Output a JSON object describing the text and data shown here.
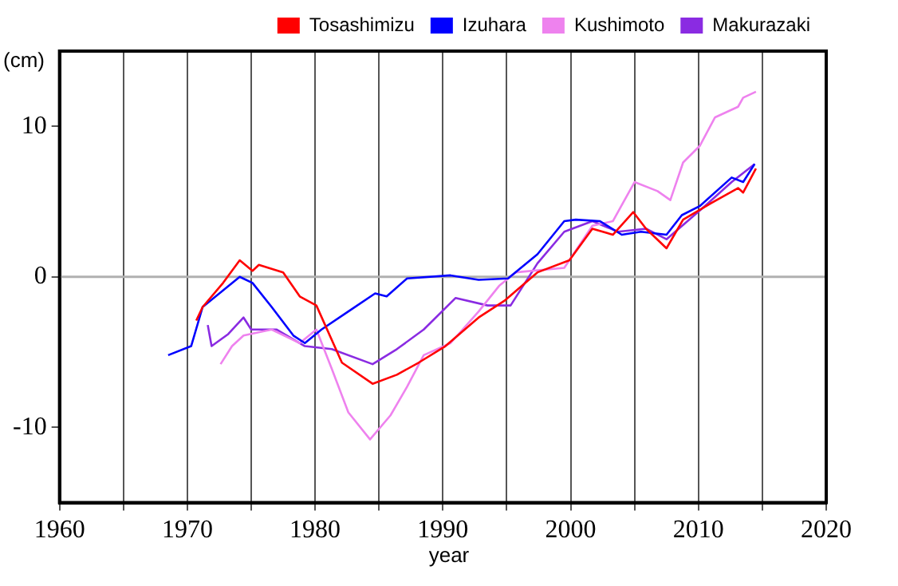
{
  "chart_data": {
    "type": "line",
    "xlabel": "year",
    "ylabel": "(cm)",
    "legend": "top right",
    "grid": "x",
    "marker": "none",
    "line_style": "solid",
    "xlim": [
      1960,
      2020
    ],
    "xticks": [
      1960,
      {
        "value": 1965,
        "label": null
      },
      1970,
      {
        "value": 1975,
        "label": null
      },
      1980,
      {
        "value": 1985,
        "label": null
      },
      1990,
      {
        "value": 1995,
        "label": null
      },
      2000,
      {
        "value": 2005,
        "label": null
      },
      2010,
      {
        "value": 2015,
        "label": null
      },
      2020
    ],
    "ylim": [
      -15,
      15
    ],
    "yticks": [
      -10,
      0,
      10
    ],
    "ref_lines": [
      {
        "axis": "y",
        "value": 0,
        "color": "#b0b0b0"
      }
    ],
    "series": [
      {
        "name": "Tosashimizu",
        "color": "#ff0000",
        "x": [
          1970.7,
          1971.2,
          1972.8,
          1974.1,
          1975.1,
          1975.6,
          1977.5,
          1978.8,
          1980.1,
          1982.1,
          1984.5,
          1986.4,
          1988.1,
          1990.2,
          1992.8,
          1994.8,
          1997.4,
          1999.9,
          2001.7,
          2003.3,
          2004.9,
          2005.9,
          2007.5,
          2008.8,
          2011,
          2013.1,
          2013.5,
          2014.5
        ],
        "values": [
          -2.9,
          -2.0,
          -0.4,
          1.1,
          0.4,
          0.8,
          0.3,
          -1.3,
          -1.9,
          -5.7,
          -7.1,
          -6.5,
          -5.7,
          -4.6,
          -2.7,
          -1.6,
          0.3,
          1.1,
          3.2,
          2.8,
          4.3,
          3.2,
          1.9,
          3.8,
          4.9,
          5.9,
          5.6,
          7.2
        ]
      },
      {
        "name": "Izuhara",
        "color": "#0000ff",
        "x": [
          1968.5,
          1970.3,
          1971.2,
          1974.1,
          1975.1,
          1976.6,
          1978.3,
          1979.2,
          1980.5,
          1982.6,
          1984.7,
          1985.6,
          1987.2,
          1990.6,
          1992.8,
          1995.1,
          1997.4,
          1999.5,
          2000.4,
          2002.3,
          2004,
          2005.5,
          2007.5,
          2008.7,
          2010.1,
          2012.6,
          2013.5,
          2014.4
        ],
        "values": [
          -5.2,
          -4.6,
          -2.0,
          0,
          -0.4,
          -2.0,
          -3.9,
          -4.4,
          -3.5,
          -2.3,
          -1.1,
          -1.3,
          -0.1,
          0.1,
          -0.2,
          -0.1,
          1.5,
          3.7,
          3.8,
          3.7,
          2.8,
          3.0,
          2.8,
          4.1,
          4.7,
          6.6,
          6.3,
          7.5
        ]
      },
      {
        "name": "Kushimoto",
        "color": "#ee82ee",
        "x": [
          1972.6,
          1973.5,
          1974.4,
          1976.6,
          1978.8,
          1980.1,
          1981.3,
          1982.6,
          1984.3,
          1985.9,
          1987.2,
          1988.5,
          1990.6,
          1992.8,
          1994.4,
          1995.7,
          1999.5,
          2001.7,
          2003.3,
          2005,
          2006.8,
          2007.8,
          2008.8,
          2010.1,
          2011.3,
          2013.1,
          2013.5,
          2014.5
        ],
        "values": [
          -5.8,
          -4.6,
          -3.9,
          -3.5,
          -4.4,
          -3.5,
          -6.1,
          -9.0,
          -10.8,
          -9.2,
          -7.3,
          -5.2,
          -4.4,
          -2.3,
          -0.6,
          0.3,
          0.6,
          3.4,
          3.7,
          6.3,
          5.7,
          5.1,
          7.6,
          8.7,
          10.6,
          11.3,
          11.9,
          12.3
        ]
      },
      {
        "name": "Makurazaki",
        "color": "#8a2be2",
        "x": [
          1971.6,
          1971.9,
          1973.2,
          1974.4,
          1975,
          1977,
          1979.2,
          1981.3,
          1984.5,
          1986.4,
          1988.5,
          1991,
          1993.5,
          1995.3,
          1997.4,
          1999.5,
          2001.7,
          2003.7,
          2005.9,
          2007.5,
          2010.1,
          2012.6,
          2014.4
        ],
        "values": [
          -3.2,
          -4.6,
          -3.8,
          -2.7,
          -3.5,
          -3.5,
          -4.6,
          -4.8,
          -5.8,
          -4.8,
          -3.5,
          -1.4,
          -1.9,
          -1.9,
          0.9,
          3.0,
          3.7,
          3.0,
          3.2,
          2.5,
          4.4,
          6.3,
          7.5
        ]
      }
    ]
  }
}
